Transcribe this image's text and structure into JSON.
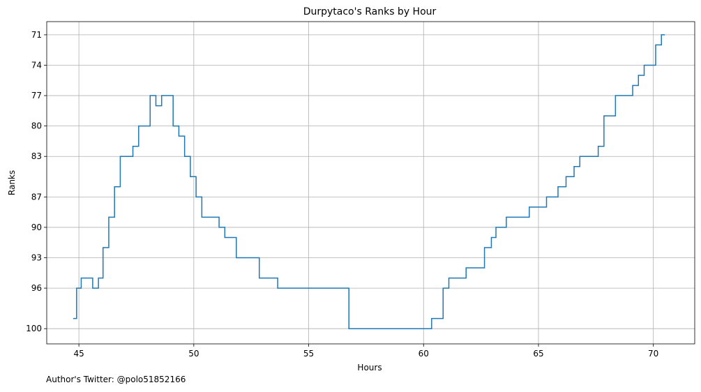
{
  "chart_data": {
    "type": "line",
    "step": true,
    "title": "Durpytaco's Ranks by Hour",
    "xlabel": "Hours",
    "ylabel": "Ranks",
    "xlim": [
      43.6,
      71.8
    ],
    "ylim": [
      101.5,
      69.7
    ],
    "y_inverted": true,
    "xticks": [
      45,
      50,
      55,
      60,
      65,
      70
    ],
    "yticks": [
      71,
      74,
      77,
      80,
      83,
      87,
      90,
      93,
      96,
      100
    ],
    "grid": true,
    "series": [
      {
        "color": "#1f77b4",
        "x": [
          44.75,
          44.9,
          45.1,
          45.6,
          45.85,
          46.05,
          46.3,
          46.55,
          46.8,
          47.35,
          47.6,
          48.1,
          48.35,
          48.6,
          49.1,
          49.35,
          49.6,
          49.85,
          50.1,
          50.35,
          51.1,
          51.35,
          51.85,
          52.85,
          53.65,
          56.75,
          60.35,
          60.85,
          61.1,
          61.85,
          62.65,
          62.95,
          63.15,
          63.6,
          64.6,
          65.35,
          65.85,
          66.2,
          66.55,
          66.8,
          67.6,
          67.85,
          68.35,
          69.1,
          69.35,
          69.6,
          70.1,
          70.35,
          70.5
        ],
        "y": [
          99,
          96,
          95,
          96,
          95,
          92,
          89,
          86,
          83,
          82,
          80,
          77,
          78,
          77,
          80,
          81,
          83,
          85,
          87,
          89,
          90,
          91,
          93,
          95,
          96,
          100,
          99,
          96,
          95,
          94,
          92,
          91,
          90,
          89,
          88,
          87,
          86,
          85,
          84,
          83,
          82,
          79,
          77,
          76,
          75,
          74,
          72,
          71,
          71
        ]
      }
    ]
  },
  "credit": "Author's Twitter: @polo51852166"
}
